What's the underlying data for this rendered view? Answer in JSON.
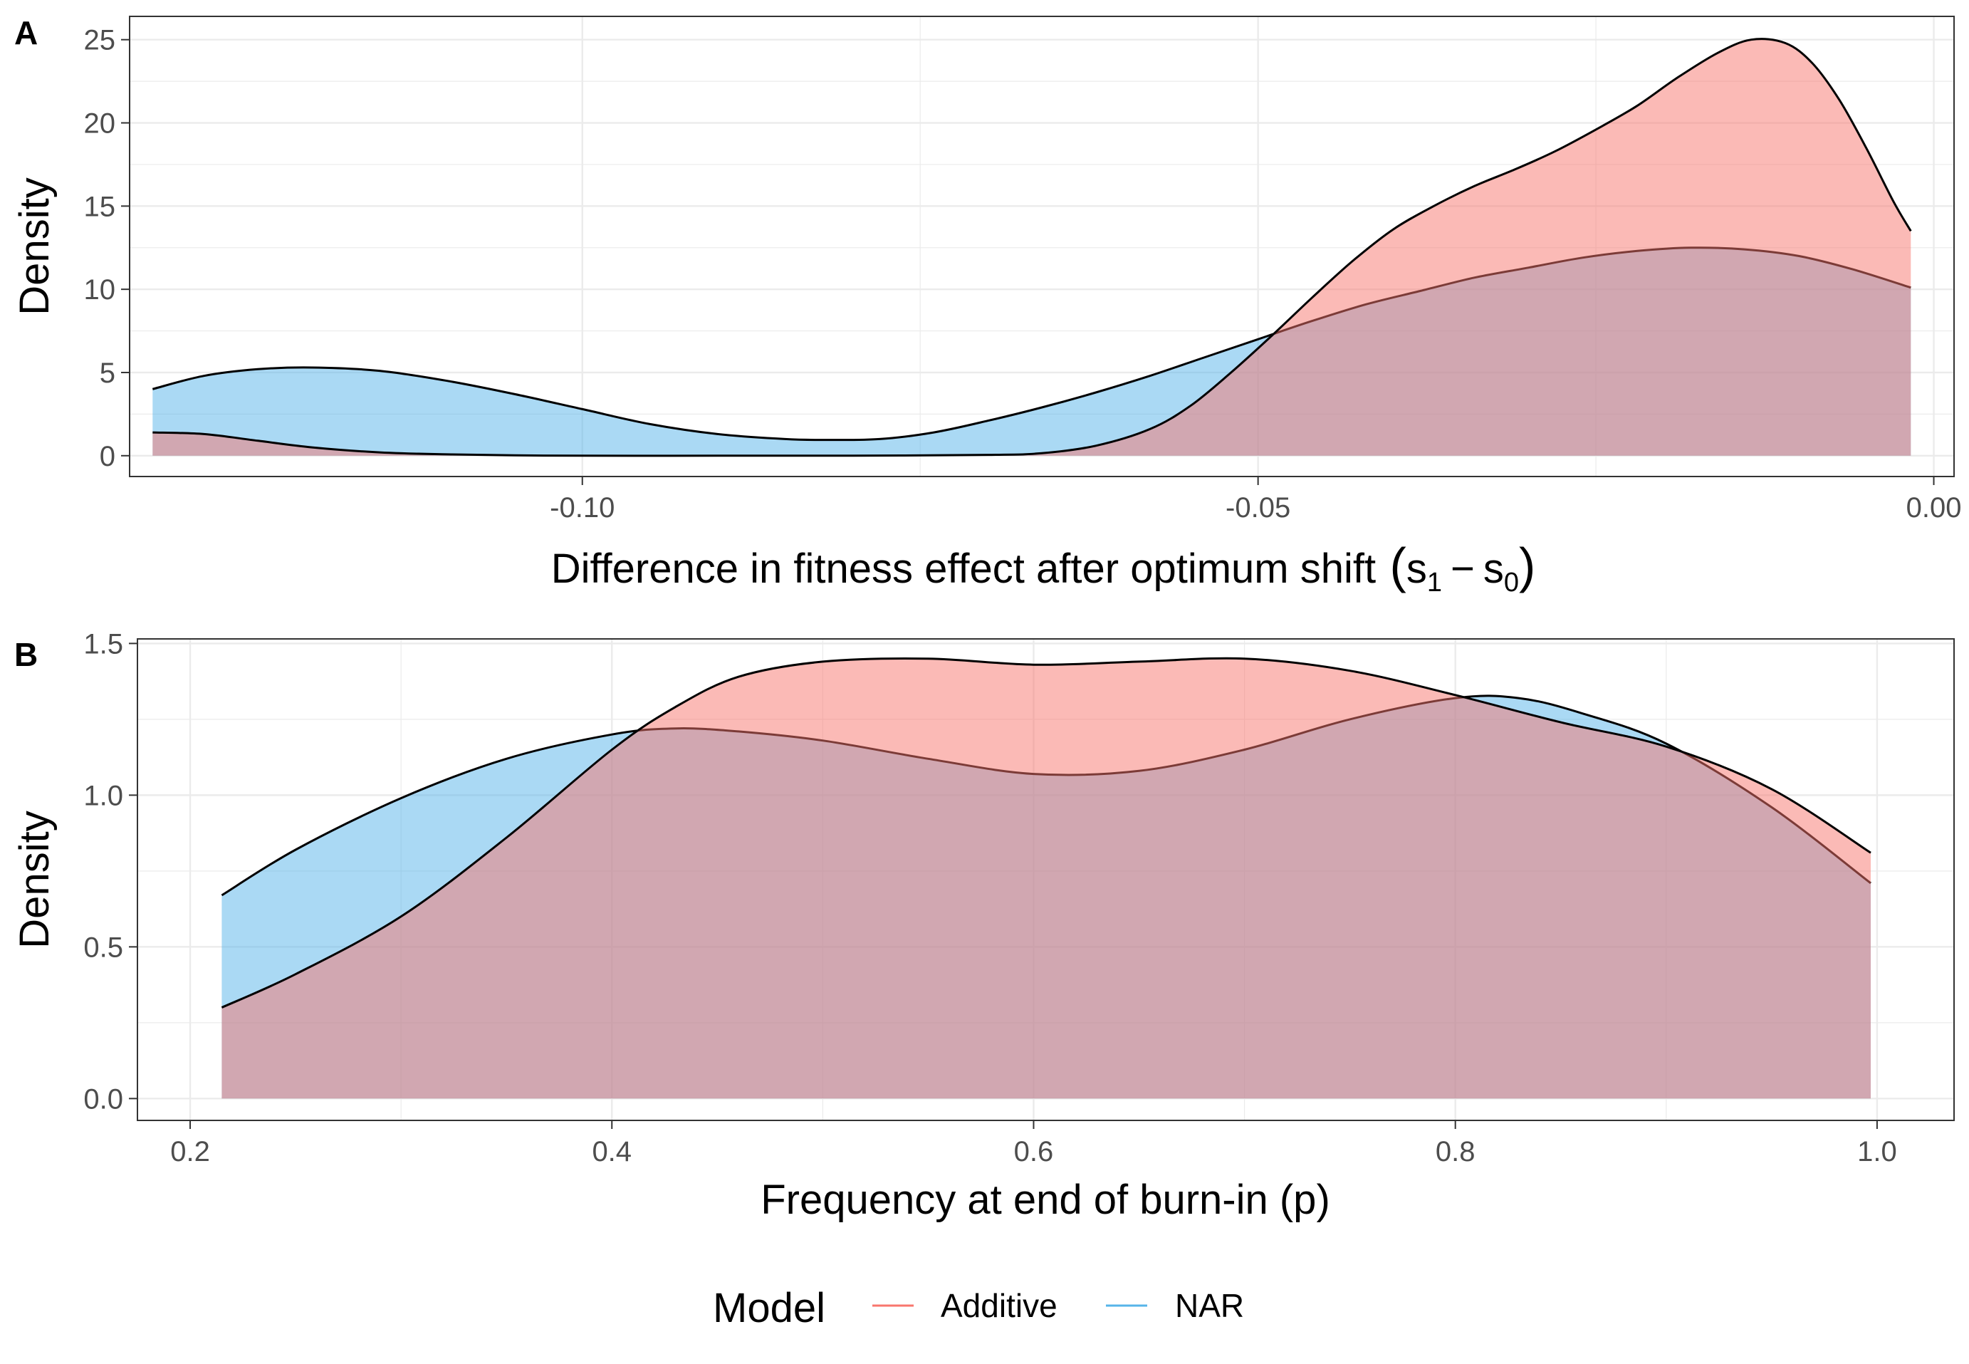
{
  "chart_data": [
    {
      "panel": "A",
      "type": "area",
      "xlabel": "Difference in fitness effect after optimum shift",
      "xlabel_math": {
        "s1": "s",
        "sub1": "1",
        "minus": "−",
        "s0": "s",
        "sub0": "0"
      },
      "ylabel": "Density",
      "xlim": [
        -0.1335,
        0.0015
      ],
      "ylim": [
        -1.25,
        26.4
      ],
      "x_ticks": [
        -0.1,
        -0.05,
        0.0
      ],
      "x_tick_labels": [
        "-0.10",
        "-0.05",
        "0.00"
      ],
      "y_ticks": [
        0,
        5,
        10,
        15,
        20,
        25
      ],
      "y_tick_labels": [
        "0",
        "5",
        "10",
        "15",
        "20",
        "25"
      ],
      "grid": true,
      "series": [
        {
          "name": "NAR",
          "x": [
            -0.1318,
            -0.128,
            -0.124,
            -0.12,
            -0.115,
            -0.11,
            -0.105,
            -0.1,
            -0.095,
            -0.09,
            -0.085,
            -0.082,
            -0.078,
            -0.074,
            -0.07,
            -0.066,
            -0.062,
            -0.058,
            -0.054,
            -0.05,
            -0.046,
            -0.042,
            -0.038,
            -0.034,
            -0.03,
            -0.026,
            -0.022,
            -0.018,
            -0.014,
            -0.01,
            -0.006,
            -0.0017
          ],
          "y": [
            4.0,
            4.8,
            5.2,
            5.3,
            5.1,
            4.5,
            3.7,
            2.8,
            1.9,
            1.3,
            1.0,
            0.95,
            1.0,
            1.4,
            2.1,
            2.9,
            3.8,
            4.8,
            5.9,
            7.0,
            8.1,
            9.1,
            9.9,
            10.7,
            11.3,
            11.9,
            12.3,
            12.5,
            12.4,
            12.0,
            11.2,
            10.1
          ]
        },
        {
          "name": "Additive",
          "x": [
            -0.1318,
            -0.128,
            -0.124,
            -0.12,
            -0.115,
            -0.11,
            -0.105,
            -0.1,
            -0.09,
            -0.08,
            -0.07,
            -0.066,
            -0.062,
            -0.058,
            -0.055,
            -0.052,
            -0.049,
            -0.046,
            -0.043,
            -0.04,
            -0.037,
            -0.034,
            -0.031,
            -0.028,
            -0.025,
            -0.022,
            -0.019,
            -0.016,
            -0.0135,
            -0.011,
            -0.009,
            -0.007,
            -0.005,
            -0.003,
            -0.0017
          ],
          "y": [
            1.4,
            1.3,
            0.9,
            0.5,
            0.2,
            0.08,
            0.02,
            0.0,
            0.0,
            0.0,
            0.05,
            0.15,
            0.6,
            1.6,
            3.0,
            5.0,
            7.2,
            9.5,
            11.7,
            13.6,
            15.0,
            16.2,
            17.2,
            18.3,
            19.6,
            21.0,
            22.7,
            24.2,
            25.0,
            24.8,
            23.6,
            21.4,
            18.5,
            15.3,
            13.5
          ]
        }
      ]
    },
    {
      "panel": "B",
      "type": "area",
      "xlabel": "Frequency at end of burn-in (p)",
      "ylabel": "Density",
      "xlim": [
        0.175,
        1.0365
      ],
      "ylim": [
        -0.072,
        1.515
      ],
      "x_ticks": [
        0.2,
        0.4,
        0.6,
        0.8,
        1.0
      ],
      "x_tick_labels": [
        "0.2",
        "0.4",
        "0.6",
        "0.8",
        "1.0"
      ],
      "y_ticks": [
        0.0,
        0.5,
        1.0,
        1.5
      ],
      "y_tick_labels": [
        "0.0",
        "0.5",
        "1.0",
        "1.5"
      ],
      "grid": true,
      "series": [
        {
          "name": "NAR",
          "x": [
            0.215,
            0.25,
            0.3,
            0.35,
            0.4,
            0.43,
            0.46,
            0.5,
            0.55,
            0.6,
            0.65,
            0.7,
            0.75,
            0.8,
            0.83,
            0.86,
            0.9,
            0.95,
            0.997
          ],
          "y": [
            0.67,
            0.82,
            0.99,
            1.12,
            1.2,
            1.22,
            1.21,
            1.18,
            1.12,
            1.07,
            1.08,
            1.15,
            1.25,
            1.32,
            1.32,
            1.27,
            1.17,
            0.96,
            0.71
          ]
        },
        {
          "name": "Additive",
          "x": [
            0.215,
            0.25,
            0.3,
            0.35,
            0.4,
            0.43,
            0.46,
            0.5,
            0.55,
            0.6,
            0.65,
            0.7,
            0.75,
            0.8,
            0.85,
            0.9,
            0.95,
            0.997
          ],
          "y": [
            0.3,
            0.41,
            0.6,
            0.86,
            1.15,
            1.29,
            1.39,
            1.44,
            1.45,
            1.43,
            1.44,
            1.45,
            1.41,
            1.33,
            1.24,
            1.16,
            1.02,
            0.81
          ]
        }
      ]
    }
  ],
  "legend": {
    "title": "Model",
    "position": "bottom",
    "entries": [
      {
        "label": "Additive",
        "color": "#F8766D"
      },
      {
        "label": "NAR",
        "color": "#00BFC4"
      }
    ]
  },
  "colors": {
    "additive_fill": "#F8766D",
    "nar_fill": "#00BFC4",
    "nar_fill_light": "#56B4E9",
    "outline": "#000000",
    "grid": "#ebebeb",
    "panel_border": "#333333"
  }
}
